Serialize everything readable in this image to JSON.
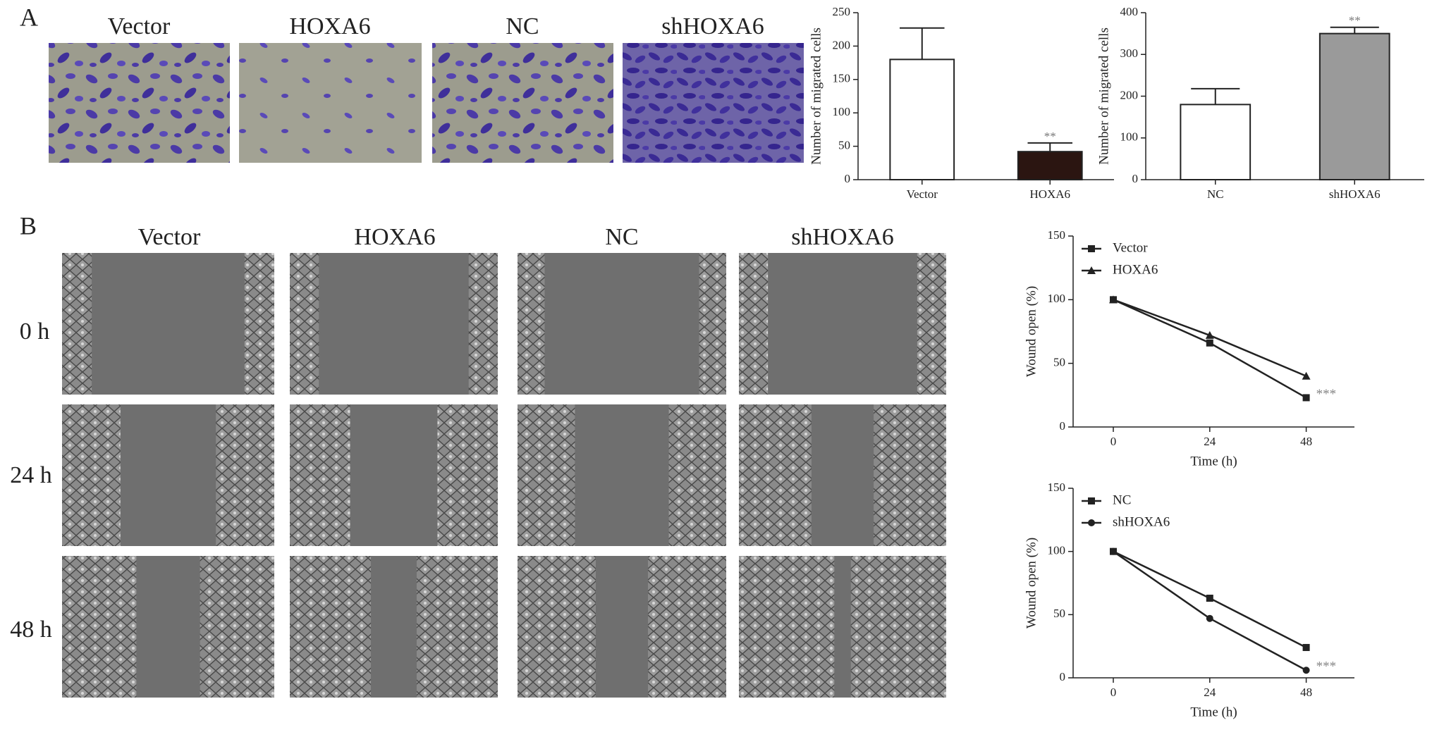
{
  "panel_labels": [
    "A",
    "B"
  ],
  "transwell_labels": [
    "Vector",
    "HOXA6",
    "NC",
    "shHOXA6"
  ],
  "wound_labels": [
    "Vector",
    "HOXA6",
    "NC",
    "shHOXA6"
  ],
  "time_labels": [
    "0 h",
    "24 h",
    "48 h"
  ],
  "chart_data": [
    {
      "type": "bar",
      "ylabel": "Number of migrated cells",
      "categories": [
        "Vector",
        "HOXA6"
      ],
      "values": [
        180,
        42
      ],
      "errors": [
        47,
        13
      ],
      "colors": [
        "#ffffff",
        "#2b1511"
      ],
      "annotations": [
        null,
        "**"
      ],
      "ylim": [
        0,
        250
      ],
      "yticks": [
        0,
        50,
        100,
        150,
        200,
        250
      ]
    },
    {
      "type": "bar",
      "ylabel": "Number of migrated cells",
      "categories": [
        "NC",
        "shHOXA6"
      ],
      "values": [
        180,
        350
      ],
      "errors": [
        38,
        15
      ],
      "colors": [
        "#ffffff",
        "#9a9a9a"
      ],
      "annotations": [
        null,
        "**"
      ],
      "ylim": [
        0,
        400
      ],
      "yticks": [
        0,
        100,
        200,
        300,
        400
      ]
    },
    {
      "type": "line",
      "ylabel": "Wound open (%)",
      "xlabel": "Time (h)",
      "x": [
        0,
        24,
        48
      ],
      "series": [
        {
          "name": "Vector",
          "color": "#222222",
          "marker": "square",
          "values": [
            100,
            66,
            23
          ]
        },
        {
          "name": "HOXA6",
          "color": "#222222",
          "marker": "triangle",
          "values": [
            100,
            72,
            40
          ]
        }
      ],
      "annotation": "***",
      "legend": "upper left",
      "xlim": [
        -10,
        60
      ],
      "ylim": [
        0,
        150
      ],
      "xticks": [
        0,
        24,
        48
      ],
      "yticks": [
        0,
        50,
        100,
        150
      ]
    },
    {
      "type": "line",
      "ylabel": "Wound open (%)",
      "xlabel": "Time (h)",
      "x": [
        0,
        24,
        48
      ],
      "series": [
        {
          "name": "NC",
          "color": "#222222",
          "marker": "square",
          "values": [
            100,
            63,
            24
          ]
        },
        {
          "name": "shHOXA6",
          "color": "#222222",
          "marker": "circle",
          "values": [
            100,
            47,
            6
          ]
        }
      ],
      "annotation": "***",
      "legend": "upper left",
      "xlim": [
        -10,
        60
      ],
      "ylim": [
        0,
        150
      ],
      "xticks": [
        0,
        24,
        48
      ],
      "yticks": [
        0,
        50,
        100,
        150
      ]
    }
  ]
}
